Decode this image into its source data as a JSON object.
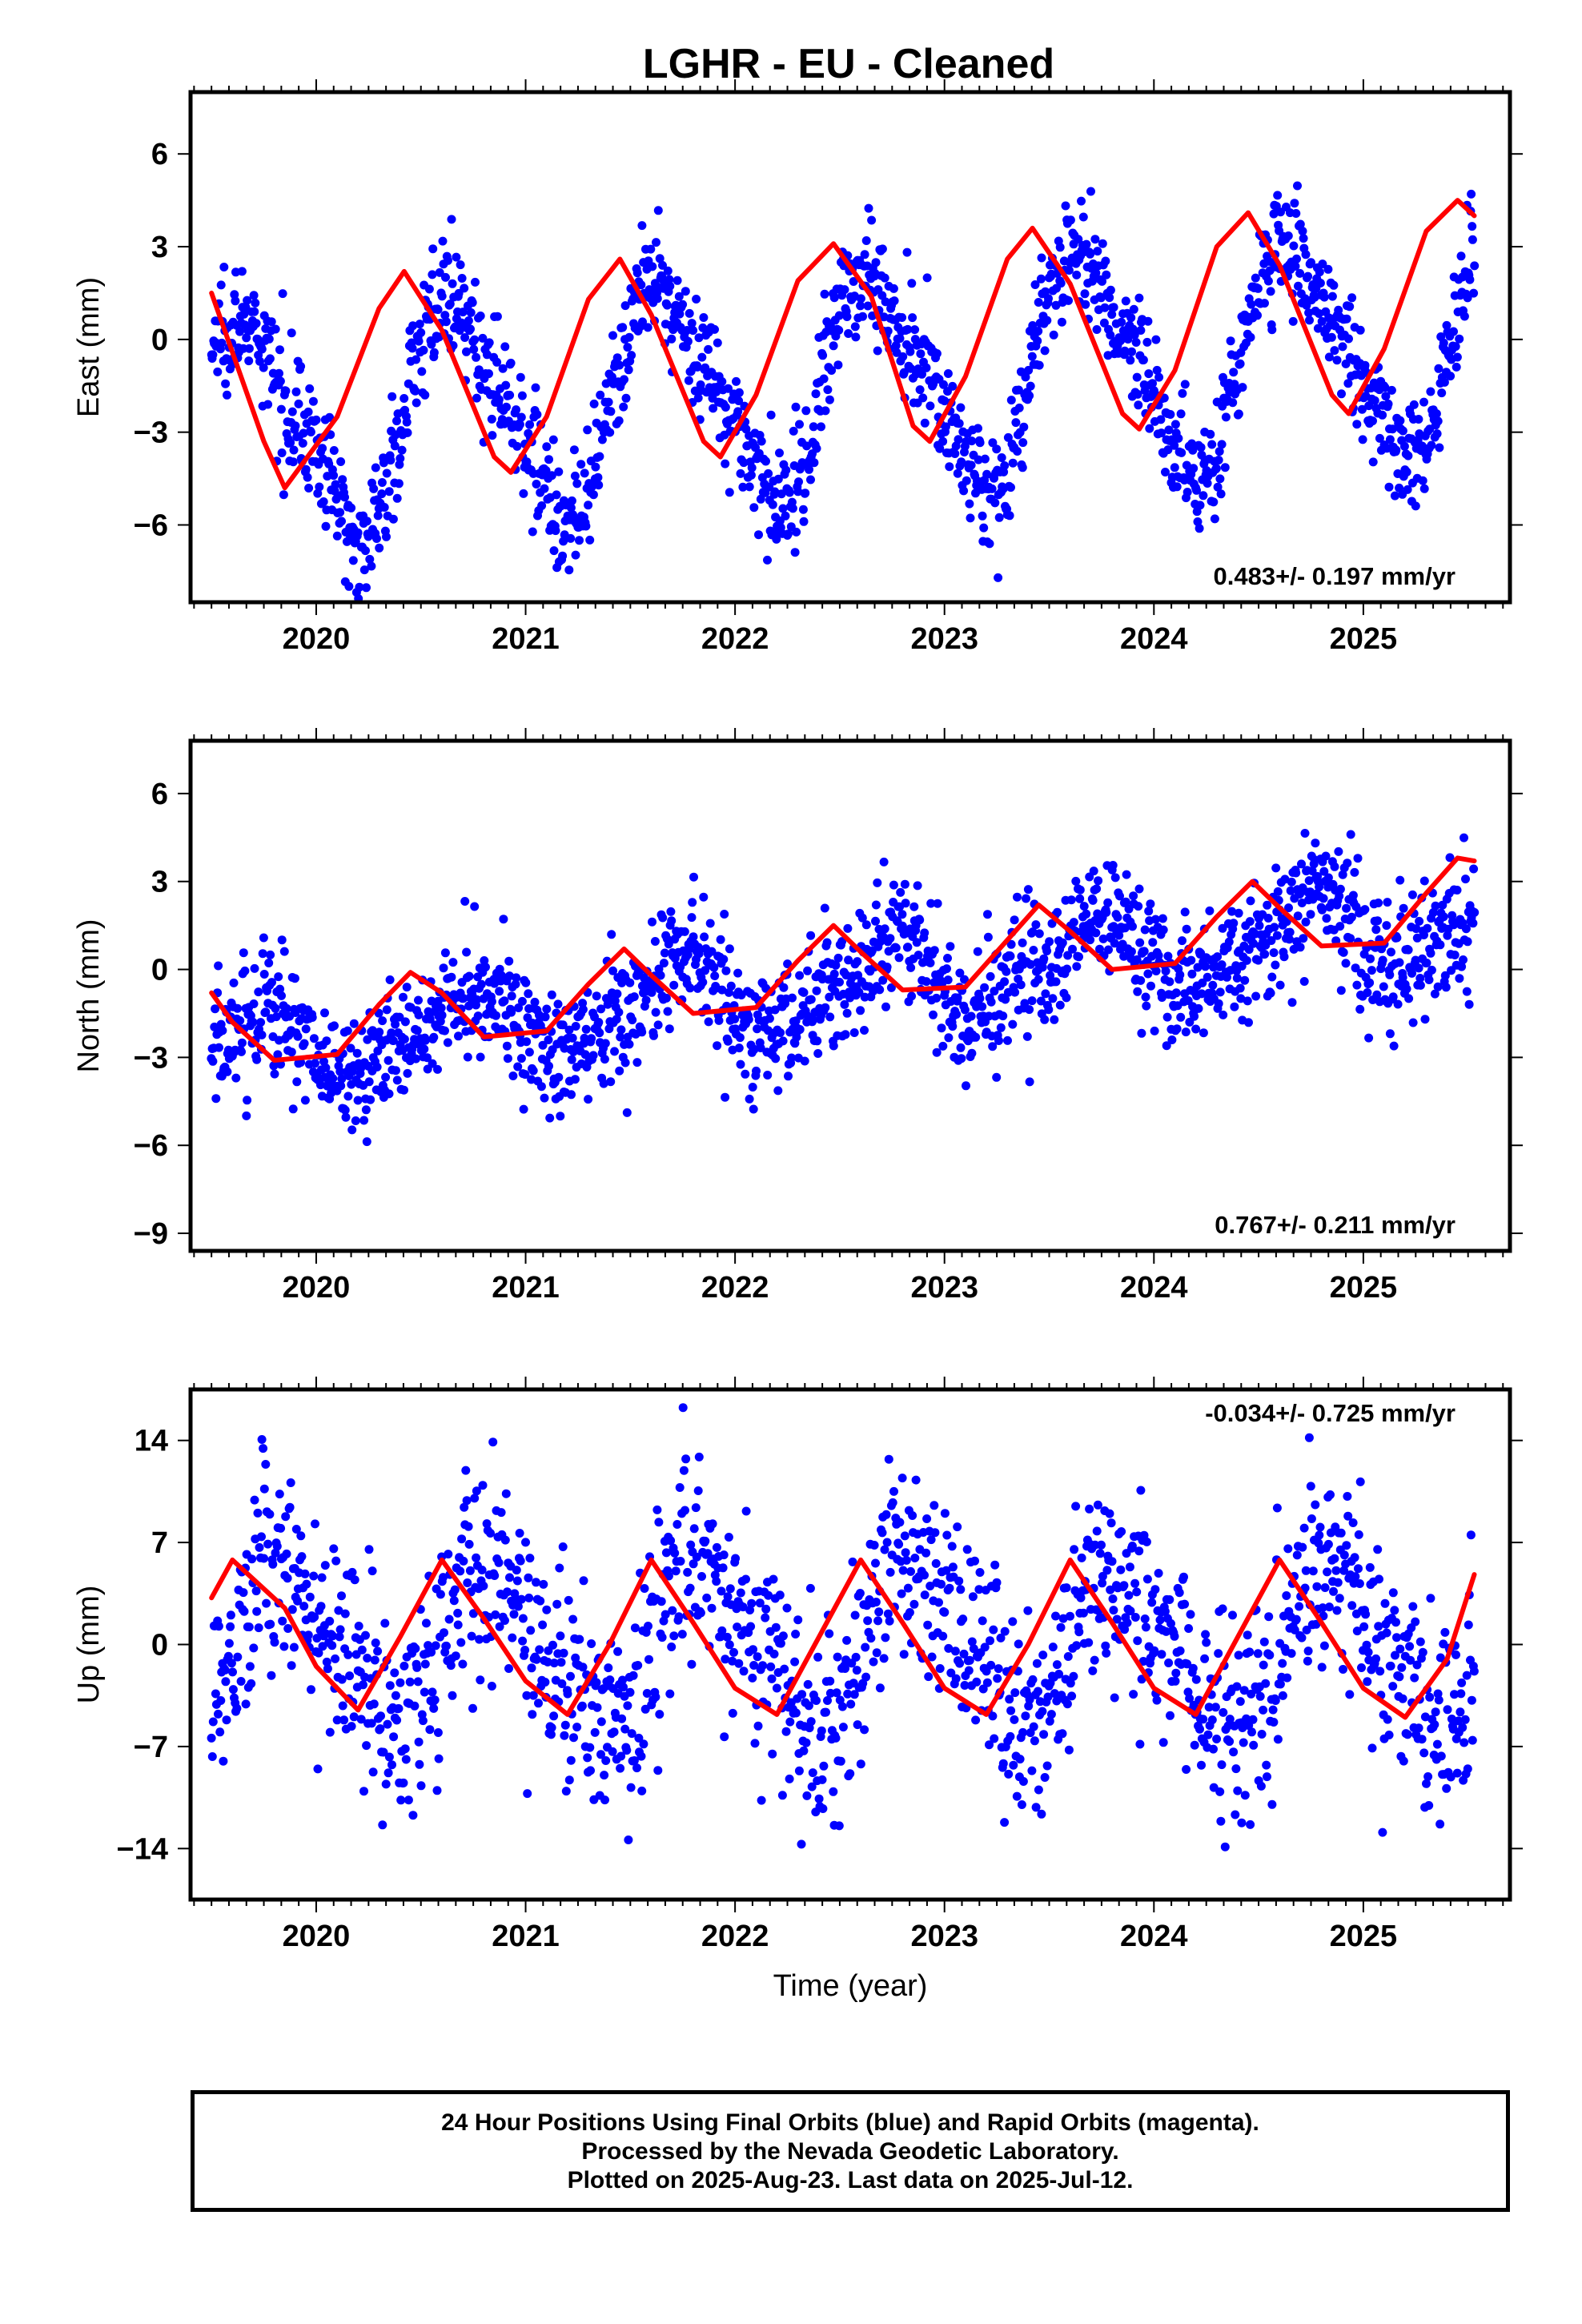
{
  "title": "LGHR  - EU - Cleaned",
  "colors": {
    "points": "#0000ff",
    "fit": "#ff0000",
    "axis": "#000000"
  },
  "footer": {
    "line1": "24 Hour Positions Using Final Orbits (blue) and Rapid Orbits (magenta).",
    "line2": "Processed by the Nevada Geodetic Laboratory.",
    "line3": "Plotted on 2025-Aug-23. Last data on 2025-Jul-12."
  },
  "chart_data": [
    {
      "type": "scatter",
      "title": "LGHR  - EU - Cleaned",
      "ylabel": "East (mm)",
      "xlabel": "",
      "xlim": [
        2019.4,
        2025.7
      ],
      "ylim": [
        -8.5,
        8
      ],
      "xticks": [
        2020,
        2021,
        2022,
        2023,
        2024,
        2025
      ],
      "yticks": [
        -6,
        -3,
        0,
        3,
        6
      ],
      "ytick_labels": [
        "−6",
        "−3",
        "0",
        "3",
        "6"
      ],
      "annotation": "0.483+/- 0.197 mm/yr",
      "annotation_position": "bottom-right",
      "grid": false,
      "series": [
        {
          "role": "daily_positions",
          "color": "#0000ff",
          "x_range": [
            2019.5,
            2025.53
          ],
          "model": {
            "offset": -1.45,
            "rate": 0.483,
            "ref_year": 2022.5,
            "annual_amp": 3.4,
            "annual_phase": 0.42,
            "semiannual_amp": 0.8,
            "semiannual_phase": 0.9,
            "noise_sd": 0.95,
            "n_points": 1700
          }
        },
        {
          "role": "fit_line",
          "color": "#ff0000",
          "x": [
            2019.5,
            2019.75,
            2019.85,
            2020.1,
            2020.3,
            2020.42,
            2020.6,
            2020.85,
            2020.93,
            2021.1,
            2021.3,
            2021.45,
            2021.6,
            2021.85,
            2021.93,
            2022.1,
            2022.3,
            2022.47,
            2022.65,
            2022.85,
            2022.93,
            2023.1,
            2023.3,
            2023.42,
            2023.6,
            2023.85,
            2023.93,
            2024.1,
            2024.3,
            2024.45,
            2024.6,
            2024.85,
            2024.93,
            2025.1,
            2025.3,
            2025.45,
            2025.53
          ],
          "y": [
            1.5,
            -3.3,
            -4.8,
            -2.5,
            1.0,
            2.2,
            0.3,
            -3.8,
            -4.3,
            -2.5,
            1.3,
            2.6,
            0.8,
            -3.3,
            -3.8,
            -1.8,
            1.9,
            3.1,
            1.4,
            -2.8,
            -3.3,
            -1.2,
            2.6,
            3.6,
            1.8,
            -2.4,
            -2.9,
            -1.0,
            3.0,
            4.1,
            2.4,
            -1.8,
            -2.4,
            -0.3,
            3.5,
            4.5,
            4.0
          ]
        }
      ]
    },
    {
      "type": "scatter",
      "ylabel": "North (mm)",
      "xlabel": "",
      "xlim": [
        2019.4,
        2025.7
      ],
      "ylim": [
        -9.6,
        7.8
      ],
      "xticks": [
        2020,
        2021,
        2022,
        2023,
        2024,
        2025
      ],
      "yticks": [
        -9,
        -6,
        -3,
        0,
        3,
        6
      ],
      "ytick_labels": [
        "−9",
        "−6",
        "−3",
        "0",
        "3",
        "6"
      ],
      "annotation": "0.767+/- 0.211 mm/yr",
      "annotation_position": "bottom-right",
      "grid": false,
      "series": [
        {
          "role": "daily_positions",
          "color": "#0000ff",
          "x_range": [
            2019.5,
            2025.53
          ],
          "model": {
            "offset": -0.6,
            "rate": 0.767,
            "ref_year": 2022.5,
            "annual_amp": 1.3,
            "annual_phase": 0.47,
            "semiannual_amp": 0.35,
            "semiannual_phase": 0.2,
            "noise_sd": 1.1,
            "n_points": 1700
          }
        },
        {
          "role": "fit_line",
          "color": "#ff0000",
          "x": [
            2019.5,
            2019.6,
            2019.8,
            2020.1,
            2020.3,
            2020.45,
            2020.6,
            2020.8,
            2021.1,
            2021.3,
            2021.47,
            2021.6,
            2021.8,
            2022.1,
            2022.3,
            2022.47,
            2022.6,
            2022.8,
            2023.1,
            2023.3,
            2023.45,
            2023.6,
            2023.8,
            2024.1,
            2024.3,
            2024.47,
            2024.6,
            2024.8,
            2025.1,
            2025.3,
            2025.45,
            2025.53
          ],
          "y": [
            -0.8,
            -1.8,
            -3.1,
            -2.9,
            -1.2,
            -0.1,
            -0.8,
            -2.3,
            -2.1,
            -0.5,
            0.7,
            -0.2,
            -1.5,
            -1.3,
            0.3,
            1.5,
            0.6,
            -0.7,
            -0.6,
            1.0,
            2.2,
            1.3,
            0.0,
            0.2,
            1.8,
            3.0,
            2.1,
            0.8,
            0.9,
            2.6,
            3.8,
            3.7
          ]
        }
      ]
    },
    {
      "type": "scatter",
      "ylabel": "Up (mm)",
      "xlabel": "Time (year)",
      "xlim": [
        2019.4,
        2025.7
      ],
      "ylim": [
        -17.5,
        17.5
      ],
      "xticks": [
        2020,
        2021,
        2022,
        2023,
        2024,
        2025
      ],
      "yticks": [
        -14,
        -7,
        0,
        7,
        14
      ],
      "ytick_labels": [
        "−14",
        "−7",
        "0",
        "7",
        "14"
      ],
      "annotation": "-0.034+/- 0.725 mm/yr",
      "annotation_position": "top-right",
      "grid": false,
      "series": [
        {
          "role": "daily_positions",
          "color": "#0000ff",
          "x_range": [
            2019.5,
            2025.53
          ],
          "model": {
            "offset": 0.0,
            "rate": -0.034,
            "ref_year": 2022.5,
            "annual_amp": 5.2,
            "annual_phase": 0.6,
            "semiannual_amp": 1.3,
            "semiannual_phase": 0.1,
            "noise_sd": 3.6,
            "n_points": 1500
          }
        },
        {
          "role": "fit_line",
          "color": "#ff0000",
          "x": [
            2019.5,
            2019.6,
            2019.85,
            2020.0,
            2020.2,
            2020.4,
            2020.6,
            2020.8,
            2021.0,
            2021.2,
            2021.4,
            2021.6,
            2021.8,
            2022.0,
            2022.2,
            2022.4,
            2022.6,
            2022.8,
            2023.0,
            2023.2,
            2023.4,
            2023.6,
            2023.8,
            2024.0,
            2024.2,
            2024.4,
            2024.6,
            2024.8,
            2025.0,
            2025.2,
            2025.4,
            2025.53
          ],
          "y": [
            3.2,
            5.8,
            2.5,
            -1.5,
            -4.5,
            0.5,
            5.8,
            1.8,
            -2.5,
            -4.8,
            0.0,
            5.8,
            1.5,
            -3.0,
            -4.8,
            0.5,
            5.8,
            1.5,
            -3.0,
            -4.8,
            0.0,
            5.8,
            1.5,
            -3.0,
            -4.8,
            0.5,
            5.8,
            1.5,
            -3.0,
            -5.0,
            -1.0,
            4.8
          ]
        }
      ]
    }
  ]
}
